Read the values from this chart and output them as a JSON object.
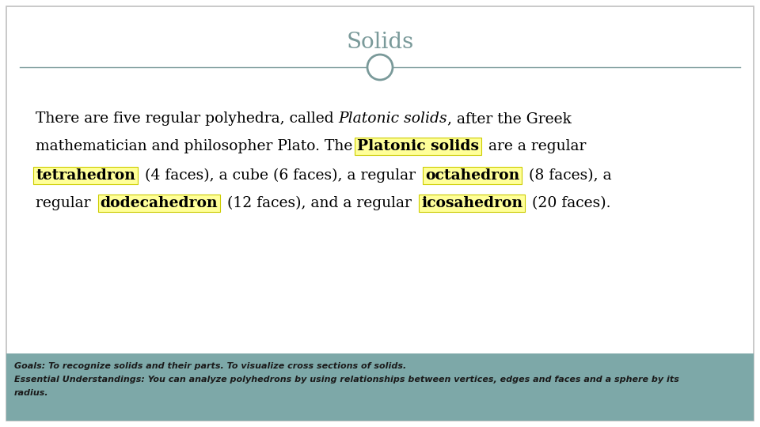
{
  "title": "Solids",
  "title_color": "#7a9a9a",
  "title_fontsize": 20,
  "bg_color": "#ffffff",
  "border_color": "#c0c0c0",
  "line_color": "#7a9a9a",
  "circle_color": "#7a9a9a",
  "highlight_color": "#ffff99",
  "highlight_border": "#cccc00",
  "footer_bg_color": "#7da8a8",
  "footer_text_color": "#1a1a1a",
  "footer_line1": "Goals: To recognize solids and their parts. To visualize cross sections of solids.",
  "footer_line2": "Essential Understandings: You can analyze polyhedrons by using relationships between vertices, edges and faces and a sphere by its",
  "footer_line3": "radius.",
  "main_fontsize": 13.5,
  "lines": [
    [
      {
        "text": "There are five regular polyhedra, called ",
        "bold": false,
        "italic": false,
        "highlight": false
      },
      {
        "text": "Platonic solids",
        "bold": false,
        "italic": true,
        "highlight": false
      },
      {
        "text": ", after the Greek",
        "bold": false,
        "italic": false,
        "highlight": false
      }
    ],
    [
      {
        "text": "mathematician and philosopher Plato. The ",
        "bold": false,
        "italic": false,
        "highlight": false
      },
      {
        "text": "Platonic solids",
        "bold": true,
        "italic": false,
        "highlight": true
      },
      {
        "text": "  are a regular",
        "bold": false,
        "italic": false,
        "highlight": false
      }
    ],
    [
      {
        "text": "tetrahedron",
        "bold": true,
        "italic": false,
        "highlight": true
      },
      {
        "text": "  (4 faces), a cube (6 faces), a regular  ",
        "bold": false,
        "italic": false,
        "highlight": false
      },
      {
        "text": "octahedron",
        "bold": true,
        "italic": false,
        "highlight": true
      },
      {
        "text": "  (8 faces), a",
        "bold": false,
        "italic": false,
        "highlight": false
      }
    ],
    [
      {
        "text": "regular  ",
        "bold": false,
        "italic": false,
        "highlight": false
      },
      {
        "text": "dodecahedron",
        "bold": true,
        "italic": false,
        "highlight": true
      },
      {
        "text": "  (12 faces), and a regular  ",
        "bold": false,
        "italic": false,
        "highlight": false
      },
      {
        "text": "icosahedron",
        "bold": true,
        "italic": false,
        "highlight": true
      },
      {
        "text": "  (20 faces).",
        "bold": false,
        "italic": false,
        "highlight": false
      }
    ]
  ]
}
